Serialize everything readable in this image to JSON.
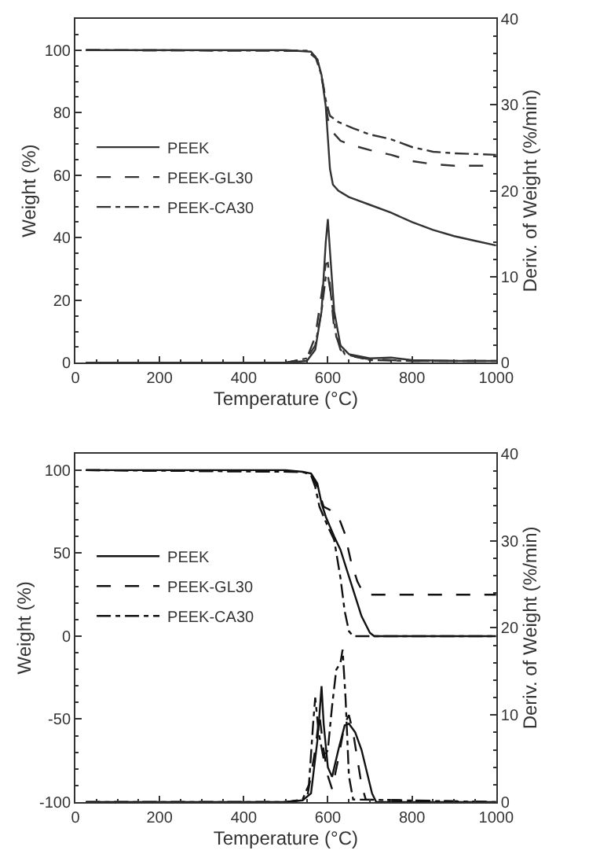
{
  "chart_data": [
    {
      "type": "line",
      "xlabel": "Temperature (°C)",
      "ylabel": "Weight (%)",
      "y2label": "Deriv. of Weight (%/min)",
      "xlim": [
        0,
        1000
      ],
      "xticks": [
        0,
        200,
        400,
        600,
        800,
        1000
      ],
      "ylim": [
        0,
        110
      ],
      "yticks": [
        0,
        20,
        40,
        60,
        80,
        100
      ],
      "y2lim": [
        0,
        40
      ],
      "y2ticks": [
        0,
        10,
        20,
        30,
        40
      ],
      "legend": "center left",
      "series": [
        {
          "name": "PEEK",
          "color": "#333333",
          "line_style": "solid",
          "x": [
            25,
            500,
            560,
            575,
            585,
            595,
            600,
            605,
            612,
            625,
            650,
            700,
            750,
            800,
            850,
            900,
            950,
            1000
          ],
          "values": [
            100,
            100,
            99.5,
            97,
            92,
            82,
            72,
            62,
            57,
            55,
            53,
            50.5,
            48,
            45,
            42.5,
            40.5,
            39,
            37.5
          ]
        },
        {
          "name": "PEEK-GL30",
          "color": "#333333",
          "line_style": "dashed",
          "x": [
            25,
            550,
            575,
            590,
            600,
            610,
            630,
            660,
            700,
            750,
            800,
            850,
            900,
            1000
          ],
          "values": [
            100,
            99.8,
            97,
            88,
            78,
            74,
            71,
            69.5,
            68,
            66.5,
            64.5,
            63.5,
            63,
            63
          ]
        },
        {
          "name": "PEEK-CA30",
          "color": "#333333",
          "line_style": "dashdot",
          "x": [
            25,
            550,
            570,
            585,
            595,
            605,
            625,
            660,
            700,
            750,
            800,
            850,
            900,
            1000
          ],
          "values": [
            100,
            99.8,
            98,
            92,
            84,
            79,
            77,
            75,
            73,
            71.5,
            69,
            67.5,
            67,
            66.5
          ]
        },
        {
          "color": "#333333",
          "line_style": "solid",
          "axis": "y2",
          "x": [
            25,
            500,
            550,
            570,
            585,
            595,
            600,
            605,
            615,
            630,
            650,
            700,
            750,
            800,
            900,
            1000
          ],
          "values": [
            0,
            0,
            0.2,
            1.5,
            6,
            14,
            16.7,
            13,
            6,
            2,
            1,
            0.5,
            0.6,
            0.3,
            0.2,
            0.2
          ]
        },
        {
          "color": "#333333",
          "line_style": "dashed",
          "axis": "y2",
          "x": [
            25,
            500,
            550,
            570,
            585,
            595,
            600,
            607,
            615,
            630,
            650,
            700,
            800,
            1000
          ],
          "values": [
            0,
            0,
            0.5,
            3,
            8,
            11.5,
            11.6,
            8,
            4,
            1.5,
            0.8,
            0.4,
            0.2,
            0.2
          ]
        },
        {
          "color": "#333333",
          "line_style": "dashdot",
          "axis": "y2",
          "x": [
            25,
            500,
            550,
            570,
            585,
            595,
            600,
            607,
            620,
            640,
            700,
            800,
            1000
          ],
          "values": [
            0,
            0,
            0.5,
            2,
            6,
            10,
            10.2,
            8,
            3,
            1,
            0.3,
            0.2,
            0.2
          ]
        }
      ]
    },
    {
      "type": "line",
      "xlabel": "Temperature (°C)",
      "ylabel": "Weight (%)",
      "y2label": "Deriv. of Weight (%/min)",
      "xlim": [
        0,
        1000
      ],
      "xticks": [
        0,
        200,
        400,
        600,
        800,
        1000
      ],
      "ylim": [
        -100,
        110
      ],
      "yticks": [
        -100,
        -50,
        0,
        50,
        100
      ],
      "y2lim": [
        0,
        40
      ],
      "y2ticks": [
        0,
        10,
        20,
        30,
        40
      ],
      "legend": "center left",
      "series": [
        {
          "name": "PEEK",
          "color": "#111111",
          "line_style": "solid",
          "x": [
            25,
            500,
            540,
            560,
            575,
            585,
            595,
            605,
            615,
            630,
            645,
            660,
            680,
            700,
            710,
            1000
          ],
          "values": [
            100,
            100,
            99,
            98,
            92,
            80,
            72,
            66,
            60,
            52,
            40,
            28,
            12,
            2,
            0,
            0
          ]
        },
        {
          "name": "PEEK-GL30",
          "color": "#111111",
          "line_style": "dashed",
          "x": [
            25,
            540,
            560,
            575,
            590,
            605,
            625,
            640,
            655,
            670,
            680,
            690,
            1000
          ],
          "values": [
            100,
            99,
            98,
            90,
            78,
            76,
            72,
            62,
            45,
            33,
            28,
            25,
            25
          ]
        },
        {
          "name": "PEEK-CA30",
          "color": "#111111",
          "line_style": "dashdot",
          "x": [
            25,
            540,
            560,
            570,
            580,
            590,
            600,
            615,
            630,
            640,
            650,
            660,
            1000
          ],
          "values": [
            100,
            99,
            97,
            90,
            78,
            72,
            66,
            58,
            35,
            15,
            3,
            0,
            0
          ]
        },
        {
          "color": "#111111",
          "line_style": "solid",
          "axis": "y2",
          "x": [
            25,
            500,
            540,
            560,
            575,
            580,
            585,
            590,
            600,
            610,
            625,
            640,
            650,
            665,
            680,
            695,
            705,
            715,
            1000
          ],
          "values": [
            0,
            0,
            0.2,
            1,
            7,
            10,
            13.3,
            9,
            4,
            2.9,
            6,
            8.8,
            9,
            8,
            6,
            3,
            1,
            0,
            0
          ]
        },
        {
          "color": "#111111",
          "line_style": "dashed",
          "axis": "y2",
          "x": [
            25,
            500,
            550,
            570,
            580,
            590,
            600,
            610,
            625,
            640,
            650,
            660,
            670,
            680,
            690,
            1000
          ],
          "values": [
            0,
            0,
            0.3,
            6,
            10,
            6,
            3,
            1.5,
            5,
            9,
            10,
            8,
            5,
            2,
            0.3,
            0
          ]
        },
        {
          "color": "#111111",
          "line_style": "dashdot",
          "axis": "y2",
          "x": [
            25,
            500,
            540,
            555,
            565,
            570,
            578,
            590,
            600,
            610,
            620,
            630,
            635,
            642,
            650,
            660,
            1000
          ],
          "values": [
            0,
            0,
            0.3,
            2,
            9,
            12,
            8,
            5,
            6,
            11,
            15.2,
            16,
            17.5,
            12,
            3,
            0.3,
            0
          ]
        }
      ]
    }
  ]
}
